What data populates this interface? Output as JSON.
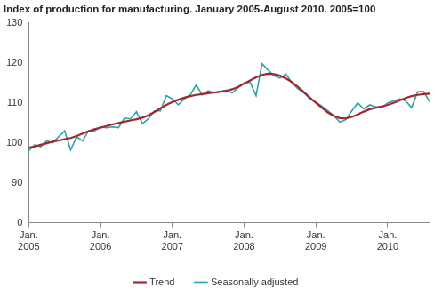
{
  "chart_data": {
    "type": "line",
    "title": "Index of production for manufacturing. January 2005-August 2010. 2005=100",
    "categories": [
      "Jan. 2005",
      null,
      null,
      null,
      null,
      null,
      null,
      null,
      null,
      null,
      null,
      null,
      "Jan. 2006",
      null,
      null,
      null,
      null,
      null,
      null,
      null,
      null,
      null,
      null,
      null,
      "Jan. 2007",
      null,
      null,
      null,
      null,
      null,
      null,
      null,
      null,
      null,
      null,
      null,
      "Jan. 2008",
      null,
      null,
      null,
      null,
      null,
      null,
      null,
      null,
      null,
      null,
      null,
      "Jan. 2009",
      null,
      null,
      null,
      null,
      null,
      null,
      null,
      null,
      null,
      null,
      null,
      "Jan. 2010",
      null,
      null,
      null,
      null,
      null,
      null,
      null
    ],
    "series": [
      {
        "name": "Trend",
        "color": "#a3262e",
        "values": [
          98.8,
          99.1,
          99.5,
          99.9,
          100.3,
          100.6,
          100.9,
          101.2,
          101.7,
          102.3,
          102.9,
          103.4,
          103.8,
          104.2,
          104.6,
          105.0,
          105.3,
          105.6,
          105.9,
          106.3,
          106.9,
          107.7,
          108.6,
          109.5,
          110.2,
          110.8,
          111.3,
          111.7,
          112.0,
          112.2,
          112.4,
          112.6,
          112.8,
          113.0,
          113.4,
          114.0,
          114.8,
          115.6,
          116.4,
          117.0,
          117.3,
          117.2,
          116.8,
          116.1,
          115.2,
          114.0,
          112.7,
          111.3,
          110.0,
          108.8,
          107.6,
          106.7,
          106.2,
          106.1,
          106.5,
          107.1,
          107.8,
          108.4,
          108.8,
          109.1,
          109.5,
          110.0,
          110.6,
          111.2,
          111.7,
          112.0,
          112.2,
          112.3
        ]
      },
      {
        "name": "Seasonally adjusted",
        "color": "#2ba3a6",
        "values": [
          98.0,
          99.5,
          99.0,
          100.5,
          100.0,
          101.5,
          103.0,
          98.2,
          101.5,
          100.5,
          103.0,
          103.0,
          104.0,
          103.8,
          104.0,
          103.8,
          106.2,
          106.0,
          107.8,
          104.8,
          106.0,
          108.0,
          108.0,
          111.8,
          111.0,
          109.5,
          111.0,
          112.0,
          114.5,
          112.0,
          113.0,
          112.5,
          112.8,
          113.2,
          112.5,
          113.8,
          115.0,
          115.2,
          111.8,
          119.8,
          118.2,
          116.8,
          116.2,
          117.2,
          115.0,
          113.5,
          112.5,
          111.0,
          110.2,
          109.2,
          108.0,
          106.8,
          105.2,
          105.8,
          108.0,
          110.0,
          108.5,
          109.5,
          109.0,
          108.7,
          110.0,
          110.5,
          111.0,
          110.5,
          108.8,
          112.8,
          112.8,
          110.3
        ]
      }
    ],
    "ylim": [
      0,
      130
    ],
    "yticks": [
      0,
      90,
      100,
      110,
      120,
      130
    ],
    "grid": false,
    "legend": "bottom"
  }
}
